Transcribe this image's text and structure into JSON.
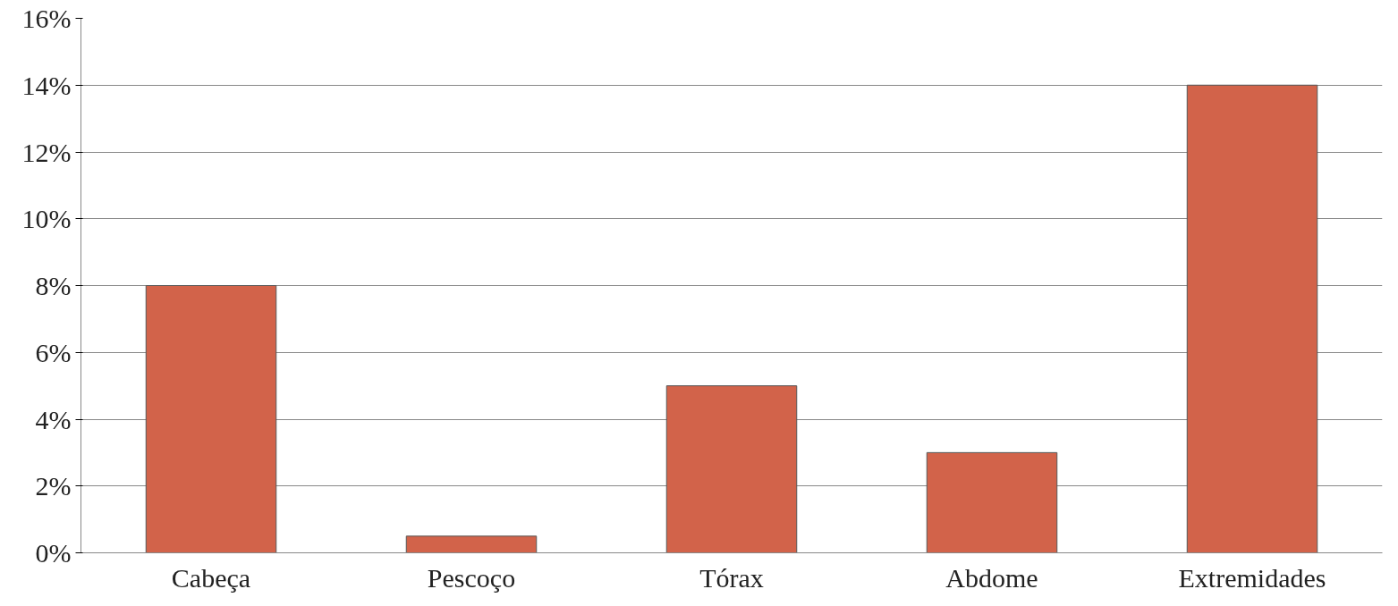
{
  "chart_data": {
    "type": "bar",
    "categories": [
      "Cabeça",
      "Pescoço",
      "Tórax",
      "Abdome",
      "Extremidades"
    ],
    "values": [
      8,
      0.5,
      5,
      3,
      14
    ],
    "color": "#d2634a",
    "ylim": [
      0,
      16
    ],
    "yticks": [
      {
        "value": 0,
        "label": "0%"
      },
      {
        "value": 2,
        "label": "2%"
      },
      {
        "value": 4,
        "label": "4%"
      },
      {
        "value": 6,
        "label": "6%"
      },
      {
        "value": 8,
        "label": "8%"
      },
      {
        "value": 10,
        "label": "10%"
      },
      {
        "value": 12,
        "label": "12%"
      },
      {
        "value": 14,
        "label": "14%"
      },
      {
        "value": 16,
        "label": "16%"
      }
    ],
    "grid": "y"
  }
}
